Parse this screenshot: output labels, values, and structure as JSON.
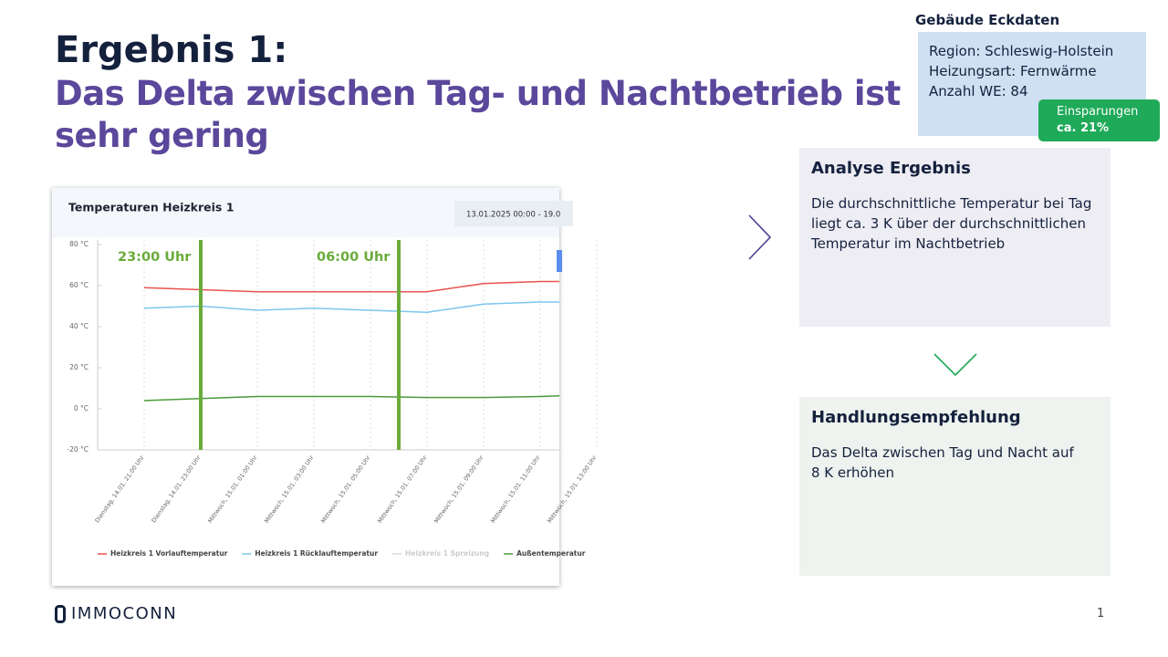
{
  "header": {
    "title": "Ergebnis 1:",
    "subtitle": "Das Delta zwischen Tag- und Nachtbetrieb ist sehr gering"
  },
  "chart_data": {
    "type": "line",
    "title": "Temperaturen Heizkreis 1",
    "date_range": "13.01.2025 00:00 - 19.0",
    "categories": [
      "Dienstag, 14.01. 21:00 Uhr",
      "Dienstag, 14.01. 23:00 Uhr",
      "Mittwoch, 15.01. 01:00 Uhr",
      "Mittwoch, 15.01. 03:00 Uhr",
      "Mittwoch, 15.01. 05:00 Uhr",
      "Mittwoch, 15.01. 07:00 Uhr",
      "Mittwoch, 15.01. 09:00 Uhr",
      "Mittwoch, 15.01. 11:00 Uhr",
      "Mittwoch, 15.01. 13:00 Uhr"
    ],
    "series": [
      {
        "name": "Heizkreis 1 Vorlauftemperatur",
        "color": "#e8534f",
        "values": [
          59,
          58,
          57,
          57,
          57,
          57,
          61,
          62,
          62
        ]
      },
      {
        "name": "Heizkreis 1 Rücklauftemperatur",
        "color": "#7cc6ee",
        "values": [
          49,
          50,
          48,
          49,
          48,
          47,
          51,
          52,
          52
        ]
      },
      {
        "name": "Heizkreis 1 Spreizung",
        "color": "#d9d9d9",
        "values": [
          null,
          null,
          null,
          null,
          null,
          null,
          null,
          null,
          null
        ]
      },
      {
        "name": "Außentemperatur",
        "color": "#4a9a3a",
        "values": [
          4,
          5,
          6,
          6,
          6,
          5.5,
          5.5,
          6,
          7
        ]
      }
    ],
    "ylim": [
      -20,
      80
    ],
    "yticks": [
      {
        "value": -20,
        "label": "-20 °C"
      },
      {
        "value": 0,
        "label": "0 °C"
      },
      {
        "value": 20,
        "label": "20 °C"
      },
      {
        "value": 40,
        "label": "40 °C"
      },
      {
        "value": 60,
        "label": "60 °C"
      },
      {
        "value": 80,
        "label": "80 °C"
      }
    ],
    "annotations": [
      "23:00 Uhr",
      "06:00 Uhr"
    ],
    "annotation_color": "#6aab3a"
  },
  "building": {
    "title": "Gebäude Eckdaten",
    "lines": [
      "Region: Schleswig-Holstein",
      "Heizungsart: Fernwärme",
      "Anzahl WE: 84"
    ]
  },
  "savings": {
    "label": "Einsparungen",
    "value": "ca. 21%"
  },
  "analysis": {
    "title": "Analyse Ergebnis",
    "text": "Die durchschnittliche Temperatur bei Tag liegt ca. 3 K über der durchschnittlichen Temperatur im Nachtbetrieb"
  },
  "recommendation": {
    "title": "Handlungsempfehlung",
    "text": "Das Delta zwischen Tag und Nacht auf 8 K erhöhen"
  },
  "footer": {
    "logo": "IMMOCONN",
    "page": "1"
  }
}
